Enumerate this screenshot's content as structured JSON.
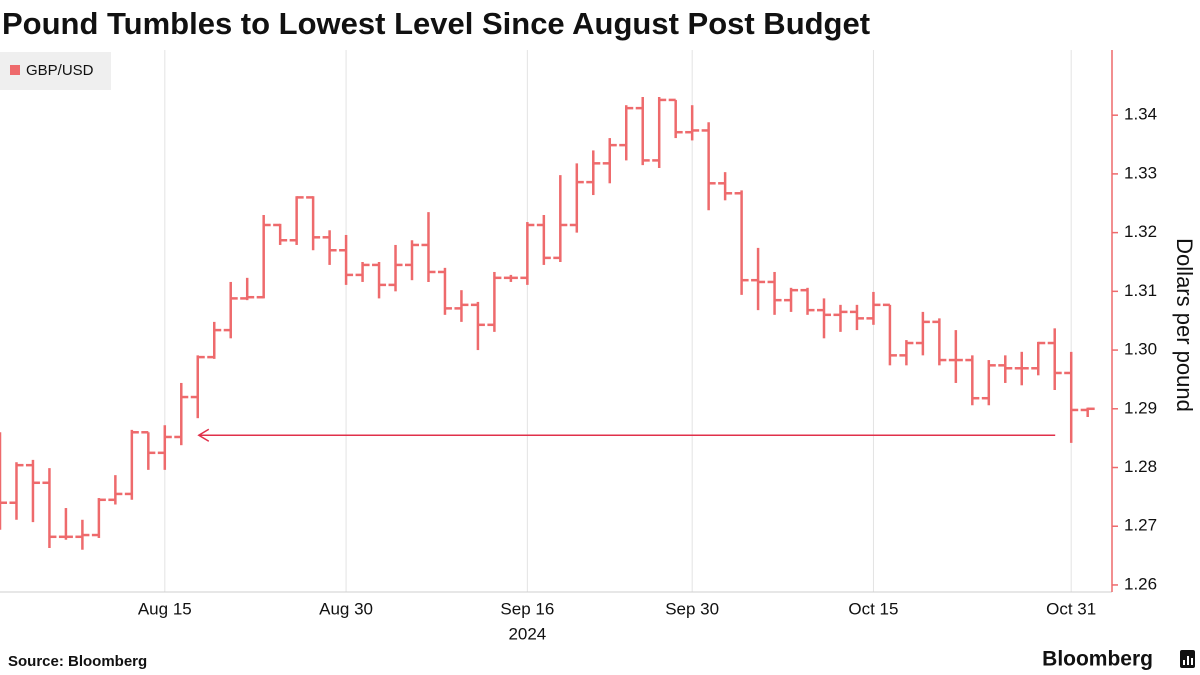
{
  "chart_data": {
    "type": "ohlc",
    "title": "Pound Tumbles to Lowest Level Since August Post Budget",
    "y_label": "Dollars per pound",
    "x_year_label": "2024",
    "source": "Source: Bloomberg",
    "brand": "Bloomberg",
    "legend_position": "top-left",
    "categories": [
      null,
      null,
      null,
      null,
      null,
      null,
      null,
      null,
      null,
      null,
      "Aug 15",
      null,
      null,
      null,
      null,
      null,
      null,
      null,
      null,
      null,
      null,
      "Aug 30",
      null,
      null,
      null,
      null,
      null,
      null,
      null,
      null,
      null,
      null,
      "Sep 16",
      null,
      null,
      null,
      null,
      null,
      null,
      null,
      null,
      null,
      "Sep 30",
      null,
      null,
      null,
      null,
      null,
      null,
      null,
      null,
      null,
      null,
      "Oct 15",
      null,
      null,
      null,
      null,
      null,
      null,
      null,
      null,
      null,
      null,
      null,
      "Oct 31",
      null
    ],
    "ylim": [
      1.2588,
      1.3511
    ],
    "yticks": [
      1.26,
      1.27,
      1.28,
      1.29,
      {
        "value": 1.3,
        "label": "1.30"
      },
      1.31,
      1.32,
      1.33,
      1.34
    ],
    "reference_level": 1.2855,
    "series": [
      {
        "name": "GBP/USD",
        "color": "#ee6a6c",
        "open": [
          1.2745,
          1.274,
          1.2804,
          1.2774,
          1.2682,
          1.2682,
          1.2685,
          1.2745,
          1.2755,
          1.286,
          1.2825,
          1.2852,
          1.292,
          1.2988,
          1.3034,
          1.3088,
          1.309,
          1.3213,
          1.3187,
          1.326,
          1.3192,
          1.317,
          1.3128,
          1.3145,
          1.3111,
          1.3145,
          1.3179,
          1.3133,
          1.3071,
          1.3077,
          1.3043,
          1.3123,
          1.3123,
          1.3213,
          1.3157,
          1.3213,
          1.3286,
          1.3318,
          1.3349,
          1.3412,
          1.3323,
          1.3426,
          1.3371,
          1.3374,
          1.3284,
          1.3267,
          1.3119,
          1.3116,
          1.3085,
          1.3102,
          1.3068,
          1.306,
          1.3065,
          1.3054,
          1.3077,
          1.2991,
          1.3012,
          1.3048,
          1.2983,
          1.2983,
          1.2918,
          1.2974,
          1.2969,
          1.2969,
          1.3012,
          1.2961,
          1.2898
        ],
        "high": [
          1.286,
          1.2809,
          1.2813,
          1.2799,
          1.2731,
          1.2711,
          1.2748,
          1.2787,
          1.2864,
          1.286,
          1.2872,
          1.2944,
          1.2991,
          1.3048,
          1.3116,
          1.3123,
          1.323,
          1.3215,
          1.3262,
          1.3262,
          1.3204,
          1.3196,
          1.315,
          1.315,
          1.3179,
          1.3187,
          1.3235,
          1.314,
          1.3102,
          1.3082,
          1.3133,
          1.3128,
          1.3218,
          1.323,
          1.3298,
          1.3318,
          1.334,
          1.3361,
          1.3417,
          1.3431,
          1.3431,
          1.3426,
          1.3417,
          1.3388,
          1.3303,
          1.3272,
          1.3174,
          1.3133,
          1.3106,
          1.3106,
          1.3088,
          1.3077,
          1.3077,
          1.3099,
          1.3077,
          1.3017,
          1.3065,
          1.3054,
          1.3034,
          1.2991,
          1.2983,
          1.2991,
          1.2997,
          1.3014,
          1.3037,
          1.2997,
          1.2902
        ],
        "low": [
          1.2694,
          1.2711,
          1.2707,
          1.2663,
          1.2677,
          1.266,
          1.268,
          1.2737,
          1.2745,
          1.2796,
          1.2796,
          1.2838,
          1.2884,
          1.2985,
          1.302,
          1.3085,
          1.3088,
          1.3179,
          1.3179,
          1.317,
          1.3145,
          1.3111,
          1.3116,
          1.3088,
          1.31,
          1.3119,
          1.3116,
          1.306,
          1.3048,
          1.3,
          1.3031,
          1.3116,
          1.3111,
          1.3145,
          1.315,
          1.32,
          1.3264,
          1.3284,
          1.3323,
          1.3315,
          1.331,
          1.3361,
          1.3357,
          1.3238,
          1.3255,
          1.3094,
          1.3068,
          1.306,
          1.3065,
          1.306,
          1.302,
          1.3031,
          1.3034,
          1.3043,
          1.2974,
          1.2974,
          1.2991,
          1.2974,
          1.2944,
          1.2906,
          1.2906,
          1.2944,
          1.294,
          1.2957,
          1.2932,
          1.2842,
          1.2886
        ],
        "close": [
          1.274,
          1.2804,
          1.2774,
          1.2682,
          1.2682,
          1.2685,
          1.2745,
          1.2755,
          1.286,
          1.2825,
          1.2852,
          1.292,
          1.2988,
          1.3034,
          1.3088,
          1.309,
          1.3213,
          1.3187,
          1.326,
          1.3192,
          1.317,
          1.3128,
          1.3145,
          1.3111,
          1.3145,
          1.3179,
          1.3133,
          1.3071,
          1.3077,
          1.3043,
          1.3123,
          1.3123,
          1.3213,
          1.3157,
          1.3213,
          1.3286,
          1.3318,
          1.3349,
          1.3412,
          1.3323,
          1.3426,
          1.3371,
          1.3374,
          1.3284,
          1.3267,
          1.3119,
          1.3116,
          1.3085,
          1.3102,
          1.3068,
          1.306,
          1.3065,
          1.3054,
          1.3077,
          1.2991,
          1.3012,
          1.3048,
          1.2983,
          1.2983,
          1.2918,
          1.2974,
          1.2969,
          1.2969,
          1.3012,
          1.2961,
          1.2898,
          1.29
        ]
      }
    ]
  }
}
